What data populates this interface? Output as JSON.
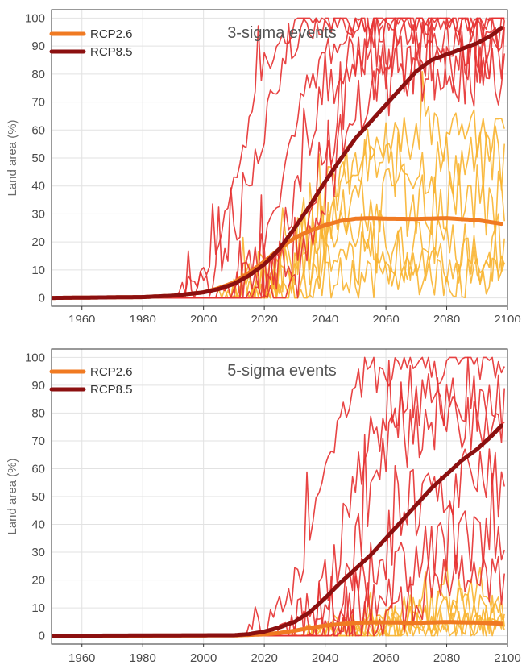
{
  "chart_data": [
    {
      "type": "line",
      "title": "3-sigma events",
      "xlabel": "",
      "ylabel": "Land area (%)",
      "xlim": [
        1950,
        2100
      ],
      "ylim": [
        -3,
        103
      ],
      "xticks": [
        "1960",
        "1980",
        "2000",
        "2020",
        "2040",
        "2060",
        "2080",
        "2100"
      ],
      "yticks": [
        "0",
        "10",
        "20",
        "30",
        "40",
        "50",
        "60",
        "70",
        "80",
        "90",
        "100"
      ],
      "grid": true,
      "legend": {
        "placement": "top-left",
        "entries": [
          "RCP2.6",
          "RCP8.5"
        ]
      },
      "series": [
        {
          "name": "RCP2.6",
          "color": "#f07a22",
          "role": "ensemble-mean",
          "x": [
            1950,
            1980,
            1990,
            2000,
            2005,
            2010,
            2015,
            2020,
            2025,
            2030,
            2035,
            2040,
            2045,
            2050,
            2055,
            2060,
            2070,
            2080,
            2090,
            2098
          ],
          "y": [
            0,
            0.3,
            0.8,
            2,
            3.5,
            5.5,
            9,
            13,
            17.5,
            21.5,
            24,
            26,
            27.5,
            28.3,
            28.5,
            28.3,
            28.2,
            28.5,
            27.8,
            26.5
          ]
        },
        {
          "name": "RCP8.5",
          "color": "#8c1010",
          "role": "ensemble-mean",
          "x": [
            1950,
            1980,
            1990,
            2000,
            2005,
            2010,
            2015,
            2020,
            2025,
            2030,
            2035,
            2040,
            2045,
            2050,
            2055,
            2060,
            2065,
            2070,
            2075,
            2080,
            2085,
            2090,
            2095,
            2098
          ],
          "y": [
            0,
            0.3,
            0.8,
            2,
            3.2,
            5,
            8,
            12,
            17.5,
            25,
            33,
            41.5,
            49.5,
            57,
            63,
            69,
            75,
            81,
            85,
            87,
            89,
            91,
            94,
            96.5
          ]
        }
      ],
      "members": [
        {
          "color": "#f8b430",
          "start": 2005,
          "amp": 32,
          "plateau": 20,
          "noise": 12,
          "seed": 11
        },
        {
          "color": "#f8b430",
          "start": 2008,
          "amp": 45,
          "plateau": 35,
          "noise": 14,
          "seed": 12
        },
        {
          "color": "#f8b430",
          "start": 2010,
          "amp": 28,
          "plateau": 15,
          "noise": 10,
          "seed": 13
        },
        {
          "color": "#f8b430",
          "start": 2012,
          "amp": 55,
          "plateau": 48,
          "noise": 12,
          "seed": 14
        },
        {
          "color": "#f8b430",
          "start": 2015,
          "amp": 25,
          "plateau": 8,
          "noise": 8,
          "seed": 15
        },
        {
          "color": "#f8b430",
          "start": 2018,
          "amp": 62,
          "plateau": 58,
          "noise": 10,
          "seed": 16
        },
        {
          "color": "#e63030",
          "start": 1990,
          "amp": 100,
          "plateau": 100,
          "noise": 5,
          "seed": 21
        },
        {
          "color": "#e63030",
          "start": 1995,
          "amp": 100,
          "plateau": 100,
          "noise": 6,
          "seed": 22
        },
        {
          "color": "#e63030",
          "start": 2005,
          "amp": 97,
          "plateau": 97,
          "noise": 8,
          "seed": 23
        },
        {
          "color": "#e63030",
          "start": 2010,
          "amp": 92,
          "plateau": 90,
          "noise": 10,
          "seed": 24
        },
        {
          "color": "#e63030",
          "start": 2015,
          "amp": 85,
          "plateau": 85,
          "noise": 12,
          "seed": 25
        },
        {
          "color": "#e63030",
          "start": 2020,
          "amp": 78,
          "plateau": 80,
          "noise": 12,
          "seed": 26
        }
      ]
    },
    {
      "type": "line",
      "title": "5-sigma events",
      "xlabel": "",
      "ylabel": "Land area (%)",
      "xlim": [
        1950,
        2100
      ],
      "ylim": [
        -3,
        103
      ],
      "xticks": [
        "1960",
        "1980",
        "2000",
        "2020",
        "2040",
        "2060",
        "2080",
        "2100"
      ],
      "yticks": [
        "0",
        "10",
        "20",
        "30",
        "40",
        "50",
        "60",
        "70",
        "80",
        "90",
        "100"
      ],
      "grid": true,
      "legend": {
        "placement": "top-left",
        "entries": [
          "RCP2.6",
          "RCP8.5"
        ]
      },
      "series": [
        {
          "name": "RCP2.6",
          "color": "#f07a22",
          "role": "ensemble-mean",
          "x": [
            1950,
            2010,
            2020,
            2025,
            2030,
            2035,
            2040,
            2045,
            2050,
            2055,
            2060,
            2070,
            2080,
            2090,
            2098
          ],
          "y": [
            0,
            0.1,
            0.5,
            1,
            1.8,
            2.8,
            3.6,
            4.2,
            4.6,
            4.8,
            4.8,
            4.6,
            4.9,
            4.7,
            4.3
          ]
        },
        {
          "name": "RCP8.5",
          "color": "#8c1010",
          "role": "ensemble-mean",
          "x": [
            1950,
            2010,
            2015,
            2020,
            2025,
            2030,
            2035,
            2040,
            2045,
            2050,
            2055,
            2060,
            2065,
            2070,
            2075,
            2080,
            2085,
            2090,
            2095,
            2098
          ],
          "y": [
            0,
            0.2,
            0.6,
            1.5,
            3,
            5,
            8.5,
            13.5,
            19,
            24,
            29,
            35,
            41,
            47,
            53,
            58,
            63,
            67,
            72,
            75.5
          ]
        }
      ],
      "members": [
        {
          "color": "#f8b430",
          "start": 2030,
          "amp": 12,
          "plateau": 4,
          "noise": 6,
          "seed": 31
        },
        {
          "color": "#f8b430",
          "start": 2035,
          "amp": 18,
          "plateau": 8,
          "noise": 6,
          "seed": 32
        },
        {
          "color": "#f8b430",
          "start": 2040,
          "amp": 22,
          "plateau": 10,
          "noise": 8,
          "seed": 33
        },
        {
          "color": "#f8b430",
          "start": 2045,
          "amp": 30,
          "plateau": 14,
          "noise": 9,
          "seed": 34
        },
        {
          "color": "#f8b430",
          "start": 2050,
          "amp": 12,
          "plateau": 3,
          "noise": 4,
          "seed": 35
        },
        {
          "color": "#e63030",
          "start": 2015,
          "amp": 100,
          "plateau": 98,
          "noise": 8,
          "seed": 41
        },
        {
          "color": "#e63030",
          "start": 2025,
          "amp": 90,
          "plateau": 85,
          "noise": 12,
          "seed": 42
        },
        {
          "color": "#e63030",
          "start": 2030,
          "amp": 85,
          "plateau": 80,
          "noise": 14,
          "seed": 43
        },
        {
          "color": "#e63030",
          "start": 2035,
          "amp": 60,
          "plateau": 55,
          "noise": 14,
          "seed": 44
        },
        {
          "color": "#e63030",
          "start": 2038,
          "amp": 38,
          "plateau": 35,
          "noise": 12,
          "seed": 45
        },
        {
          "color": "#e63030",
          "start": 2042,
          "amp": 25,
          "plateau": 20,
          "noise": 10,
          "seed": 46
        }
      ]
    }
  ]
}
